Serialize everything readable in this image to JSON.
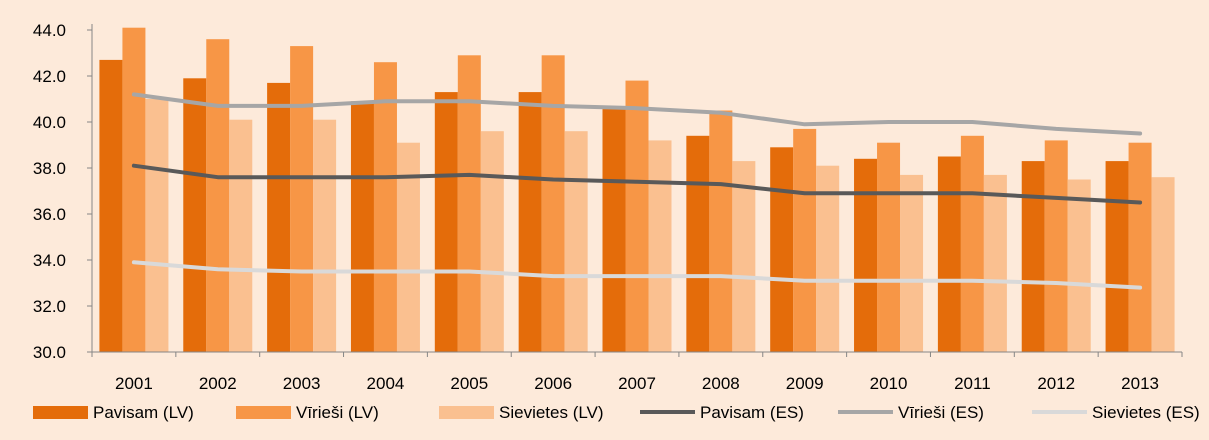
{
  "chart_data": {
    "type": "bar",
    "title": "",
    "xlabel": "",
    "ylabel": "",
    "ylim": [
      30,
      44
    ],
    "yticks": [
      "30.0",
      "32.0",
      "34.0",
      "36.0",
      "38.0",
      "40.0",
      "42.0",
      "44.0"
    ],
    "categories": [
      "2001",
      "2002",
      "2003",
      "2004",
      "2005",
      "2006",
      "2007",
      "2008",
      "2009",
      "2010",
      "2011",
      "2012",
      "2013"
    ],
    "bar_series": [
      {
        "name": "Pavisam (LV)",
        "color": "#e46c0a",
        "values": [
          42.7,
          41.9,
          41.7,
          40.9,
          41.3,
          41.3,
          40.6,
          39.4,
          38.9,
          38.4,
          38.5,
          38.3,
          38.3
        ]
      },
      {
        "name": "Vīrieši (LV)",
        "color": "#f79646",
        "values": [
          44.1,
          43.6,
          43.3,
          42.6,
          42.9,
          42.9,
          41.8,
          40.5,
          39.7,
          39.1,
          39.4,
          39.2,
          39.1
        ]
      },
      {
        "name": "Sievietes (LV)",
        "color": "#fac090",
        "values": [
          41.0,
          40.1,
          40.1,
          39.1,
          39.6,
          39.6,
          39.2,
          38.3,
          38.1,
          37.7,
          37.7,
          37.5,
          37.6
        ]
      }
    ],
    "line_series": [
      {
        "name": "Pavisam (ES)",
        "color": "#595959",
        "values": [
          38.1,
          37.6,
          37.6,
          37.6,
          37.7,
          37.5,
          37.4,
          37.3,
          36.9,
          36.9,
          36.9,
          36.7,
          36.5
        ]
      },
      {
        "name": "Vīrieši (ES)",
        "color": "#a6a6a6",
        "values": [
          41.2,
          40.7,
          40.7,
          40.9,
          40.9,
          40.7,
          40.6,
          40.4,
          39.9,
          40.0,
          40.0,
          39.7,
          39.5
        ]
      },
      {
        "name": "Sievietes (ES)",
        "color": "#d9d9d9",
        "values": [
          33.9,
          33.6,
          33.5,
          33.5,
          33.5,
          33.3,
          33.3,
          33.3,
          33.1,
          33.1,
          33.1,
          33.0,
          32.8
        ]
      }
    ],
    "grid": false,
    "legend_position": "bottom"
  }
}
